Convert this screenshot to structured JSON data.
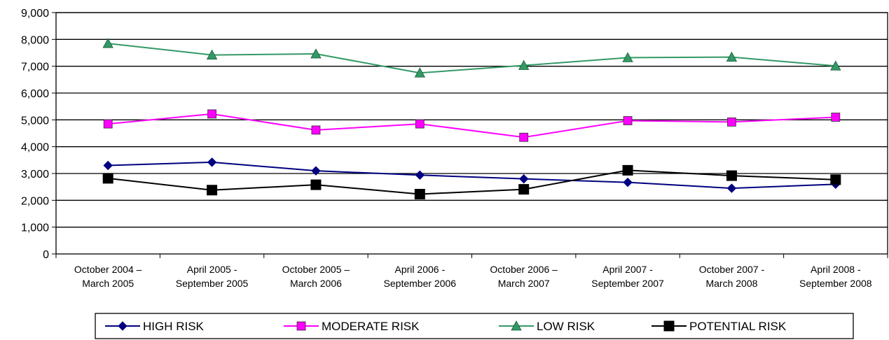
{
  "chart_data": {
    "type": "line",
    "title": "",
    "xlabel": "",
    "ylabel": "",
    "ylim": [
      0,
      9000
    ],
    "yticks": [
      "0",
      "1,000",
      "2,000",
      "3,000",
      "4,000",
      "5,000",
      "6,000",
      "7,000",
      "8,000",
      "9,000"
    ],
    "grid": "horizontal",
    "legend_position": "bottom",
    "categories": [
      [
        "October 2004 –",
        "March 2005"
      ],
      [
        "April 2005 -",
        "September 2005"
      ],
      [
        "October 2005 –",
        "March 2006"
      ],
      [
        "April 2006 -",
        "September 2006"
      ],
      [
        "October 2006 –",
        "March 2007"
      ],
      [
        "April 2007 -",
        "September 2007"
      ],
      [
        "October 2007 -",
        "March 2008"
      ],
      [
        "April 2008 -",
        "September 2008"
      ]
    ],
    "series": [
      {
        "name": "HIGH RISK",
        "color": "#000080",
        "marker": "diamond",
        "values": [
          3300,
          3420,
          3100,
          2940,
          2800,
          2670,
          2450,
          2600
        ]
      },
      {
        "name": "MODERATE RISK",
        "color": "#ff00ff",
        "marker": "square",
        "values": [
          4850,
          5220,
          4620,
          4850,
          4350,
          4970,
          4920,
          5100
        ]
      },
      {
        "name": "LOW RISK",
        "color": "#339966",
        "marker": "triangle",
        "values": [
          7850,
          7420,
          7460,
          6750,
          7030,
          7320,
          7340,
          7010
        ]
      },
      {
        "name": "POTENTIAL RISK",
        "color": "#000000",
        "marker": "square-large",
        "values": [
          2820,
          2380,
          2580,
          2230,
          2410,
          3120,
          2920,
          2770
        ]
      }
    ]
  }
}
